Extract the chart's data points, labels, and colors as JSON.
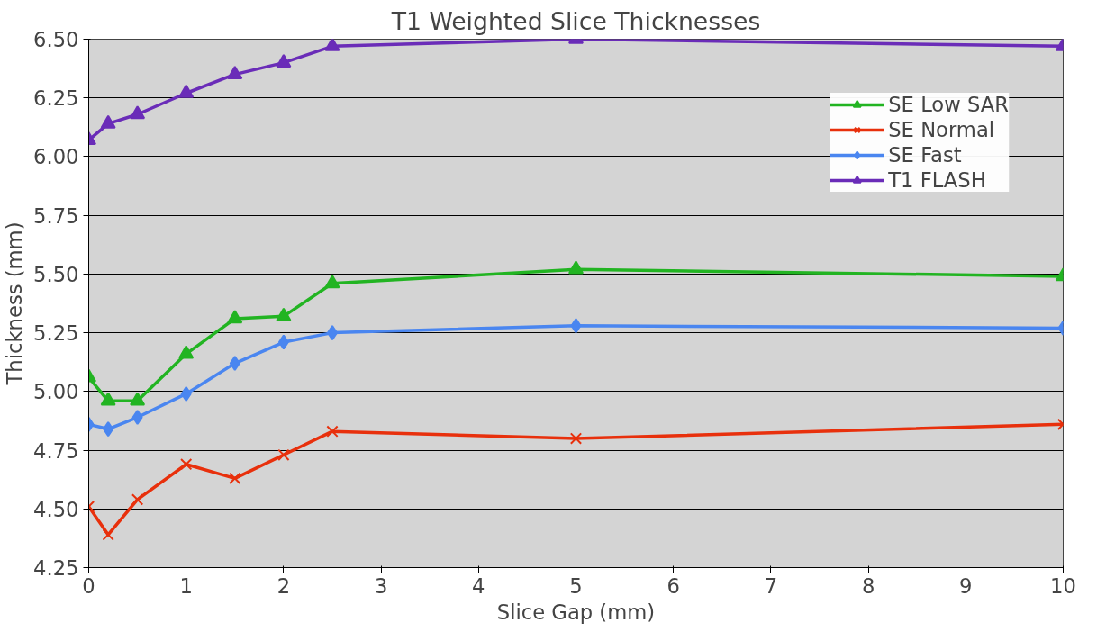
{
  "chart_data": {
    "type": "line",
    "title": "T1 Weighted Slice Thicknesses",
    "xlabel": "Slice Gap (mm)",
    "ylabel": "Thickness (mm)",
    "x": [
      0,
      0.2,
      0.5,
      1,
      1.5,
      2,
      2.5,
      5,
      10
    ],
    "series": [
      {
        "name": "SE Low SAR",
        "color": "#22b422",
        "marker": "triangle",
        "values": [
          5.06,
          4.96,
          4.96,
          5.16,
          5.31,
          5.32,
          5.46,
          5.52,
          5.49
        ]
      },
      {
        "name": "SE Normal",
        "color": "#e8300c",
        "marker": "cross",
        "values": [
          4.51,
          4.39,
          4.54,
          4.69,
          4.63,
          4.73,
          4.83,
          4.8,
          4.86
        ]
      },
      {
        "name": "SE Fast",
        "color": "#4a86f0",
        "marker": "diamond",
        "values": [
          4.86,
          4.84,
          4.89,
          4.99,
          5.12,
          5.21,
          5.25,
          5.28,
          5.27
        ]
      },
      {
        "name": "T1 FLASH",
        "color": "#6a2cb8",
        "marker": "triangle",
        "values": [
          6.07,
          6.14,
          6.18,
          6.27,
          6.35,
          6.4,
          6.47,
          6.5,
          6.47
        ]
      }
    ],
    "xlim": [
      0,
      10
    ],
    "xticks": [
      0,
      1,
      2,
      3,
      4,
      5,
      6,
      7,
      8,
      9,
      10
    ],
    "ylim": [
      4.25,
      6.5
    ],
    "yticks": [
      {
        "value": 4.25,
        "label": "4.25"
      },
      {
        "value": 4.5,
        "label": "4.50"
      },
      {
        "value": 4.75,
        "label": "4.75"
      },
      {
        "value": 5,
        "label": "5.00"
      },
      {
        "value": 5.25,
        "label": "5.25"
      },
      {
        "value": 5.5,
        "label": "5.50"
      },
      {
        "value": 5.75,
        "label": "5.75"
      },
      {
        "value": 6,
        "label": "6.00"
      },
      {
        "value": 6.25,
        "label": "6.25"
      },
      {
        "value": 6.5,
        "label": "6.50"
      }
    ],
    "grid": "y",
    "legend": "top right",
    "line_style": "solid"
  }
}
